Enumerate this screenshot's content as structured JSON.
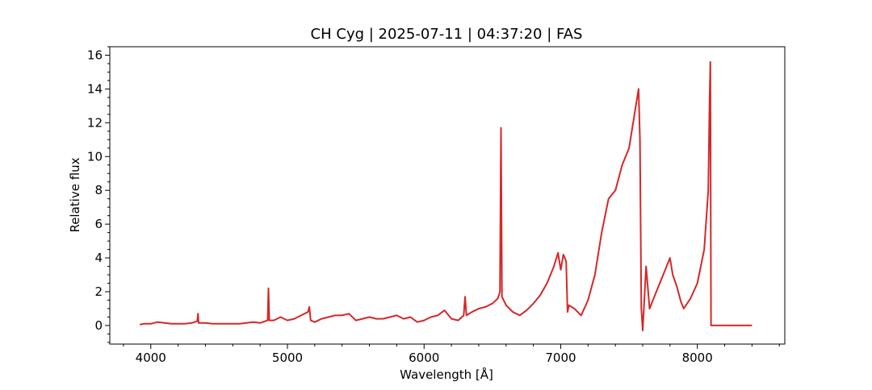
{
  "chart_data": {
    "type": "line",
    "title": "CH Cyg | 2025-07-11 | 04:37:20 | FAS",
    "xlabel": "Wavelength [Å]",
    "ylabel": "Relative flux",
    "xlim": [
      3700,
      8640
    ],
    "ylim": [
      -1.1,
      16.5
    ],
    "xticks": [
      4000,
      5000,
      6000,
      7000,
      8000
    ],
    "yticks": [
      0,
      2,
      4,
      6,
      8,
      10,
      12,
      14,
      16
    ],
    "grid": false,
    "series": [
      {
        "color": "#d62728",
        "x": [
          3920,
          3950,
          4000,
          4050,
          4100,
          4150,
          4200,
          4250,
          4300,
          4340,
          4345,
          4350,
          4400,
          4450,
          4500,
          4550,
          4600,
          4650,
          4700,
          4750,
          4800,
          4855,
          4861,
          4867,
          4900,
          4950,
          5000,
          5050,
          5100,
          5150,
          5160,
          5170,
          5200,
          5250,
          5300,
          5350,
          5400,
          5450,
          5500,
          5550,
          5600,
          5650,
          5700,
          5750,
          5800,
          5850,
          5900,
          5950,
          6000,
          6050,
          6100,
          6150,
          6200,
          6250,
          6290,
          6300,
          6310,
          6350,
          6400,
          6450,
          6500,
          6540,
          6555,
          6563,
          6570,
          6600,
          6650,
          6700,
          6750,
          6800,
          6850,
          6900,
          6950,
          6980,
          7000,
          7020,
          7040,
          7050,
          7060,
          7100,
          7150,
          7200,
          7250,
          7300,
          7350,
          7400,
          7450,
          7500,
          7550,
          7570,
          7580,
          7590,
          7600,
          7625,
          7650,
          7700,
          7750,
          7800,
          7820,
          7850,
          7880,
          7900,
          7950,
          8000,
          8050,
          8080,
          8090,
          8095,
          8100,
          8150,
          8200,
          8300,
          8400
        ],
        "y": [
          0.05,
          0.1,
          0.1,
          0.2,
          0.15,
          0.1,
          0.1,
          0.1,
          0.15,
          0.25,
          0.7,
          0.15,
          0.15,
          0.1,
          0.1,
          0.1,
          0.1,
          0.1,
          0.15,
          0.2,
          0.15,
          0.3,
          2.2,
          0.3,
          0.3,
          0.5,
          0.3,
          0.4,
          0.6,
          0.8,
          1.1,
          0.3,
          0.2,
          0.4,
          0.5,
          0.6,
          0.6,
          0.7,
          0.3,
          0.4,
          0.5,
          0.4,
          0.4,
          0.5,
          0.6,
          0.4,
          0.5,
          0.2,
          0.3,
          0.5,
          0.6,
          0.9,
          0.4,
          0.3,
          0.6,
          1.7,
          0.6,
          0.8,
          1.0,
          1.1,
          1.3,
          1.6,
          2.0,
          11.7,
          1.7,
          1.2,
          0.8,
          0.6,
          0.9,
          1.3,
          1.8,
          2.5,
          3.5,
          4.3,
          3.3,
          4.2,
          3.8,
          0.8,
          1.2,
          1.0,
          0.6,
          1.5,
          3.0,
          5.5,
          7.5,
          8.0,
          9.5,
          10.5,
          13.0,
          14.0,
          11.0,
          1.0,
          -0.3,
          3.5,
          1.0,
          2.0,
          3.0,
          4.0,
          3.0,
          2.3,
          1.4,
          1.0,
          1.6,
          2.5,
          4.5,
          8.0,
          13.5,
          15.6,
          0.0,
          0.0,
          0.0,
          0.0,
          0.0
        ]
      }
    ]
  }
}
